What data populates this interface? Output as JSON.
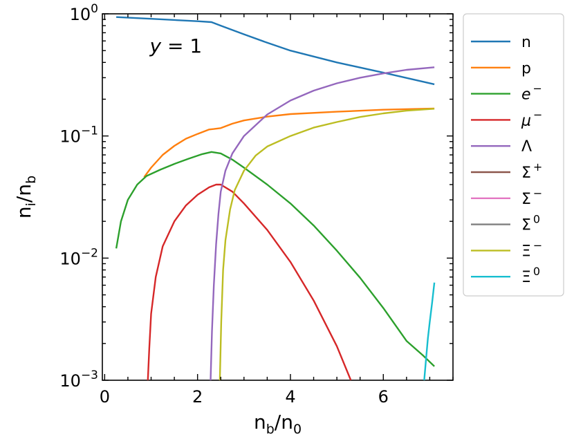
{
  "chart_data": {
    "type": "line",
    "title": "",
    "xlabel": {
      "base": "n",
      "sub": "b",
      "sep": "/",
      "base2": "n",
      "sub2": "0"
    },
    "ylabel": {
      "base": "n",
      "sub": "i",
      "sep": "/",
      "base2": "n",
      "sub2": "b"
    },
    "xlim": [
      -0.05,
      7.5
    ],
    "ylim": [
      0.001,
      1.0
    ],
    "yscale": "log",
    "grid": false,
    "legend_position": "outside-right",
    "x_ticks": [
      {
        "value": 0,
        "label": "0"
      },
      {
        "value": 2,
        "label": "2"
      },
      {
        "value": 4,
        "label": "4"
      },
      {
        "value": 6,
        "label": "6"
      }
    ],
    "y_ticks": [
      {
        "value": 1.0,
        "base": "10",
        "exp": "0"
      },
      {
        "value": 0.1,
        "base": "10",
        "exp": "−1"
      },
      {
        "value": 0.01,
        "base": "10",
        "exp": "−2"
      },
      {
        "value": 0.001,
        "base": "10",
        "exp": "−3"
      }
    ],
    "annotation": {
      "text_italic": "y",
      "text_rest": " = 1",
      "x": 1.0,
      "y": 0.55
    },
    "series": [
      {
        "name": "n",
        "label_main": "n",
        "label_sup": "",
        "italic": false,
        "color": "#1f77b4",
        "x": [
          0.25,
          1.0,
          2.0,
          2.3,
          2.5,
          3.0,
          3.5,
          4.0,
          5.0,
          6.0,
          7.1
        ],
        "y": [
          0.94,
          0.91,
          0.87,
          0.855,
          0.8,
          0.68,
          0.58,
          0.5,
          0.4,
          0.33,
          0.265
        ]
      },
      {
        "name": "p",
        "label_main": "p",
        "label_sup": "",
        "italic": false,
        "color": "#ff7f0e",
        "x": [
          0.85,
          1.0,
          1.25,
          1.5,
          1.75,
          2.0,
          2.25,
          2.35,
          2.5,
          2.75,
          3.0,
          3.5,
          4.0,
          5.0,
          6.0,
          7.1
        ],
        "y": [
          0.046,
          0.055,
          0.07,
          0.083,
          0.095,
          0.104,
          0.113,
          0.114,
          0.116,
          0.126,
          0.134,
          0.144,
          0.151,
          0.158,
          0.164,
          0.168
        ]
      },
      {
        "name": "e−",
        "label_main": "e",
        "label_sup": "−",
        "italic": true,
        "color": "#2ca02c",
        "x": [
          0.25,
          0.35,
          0.5,
          0.7,
          0.9,
          1.2,
          1.5,
          1.8,
          2.1,
          2.3,
          2.5,
          2.75,
          3.0,
          3.5,
          4.0,
          4.5,
          5.0,
          5.5,
          6.0,
          6.5,
          6.85,
          7.1
        ],
        "y": [
          0.012,
          0.02,
          0.03,
          0.04,
          0.047,
          0.053,
          0.059,
          0.065,
          0.071,
          0.074,
          0.072,
          0.064,
          0.055,
          0.04,
          0.028,
          0.0185,
          0.0115,
          0.0069,
          0.0039,
          0.0021,
          0.0016,
          0.0013
        ]
      },
      {
        "name": "μ−",
        "label_main": "μ",
        "label_sup": "−",
        "italic": true,
        "color": "#d62728",
        "x": [
          0.93,
          0.96,
          1.0,
          1.1,
          1.25,
          1.5,
          1.75,
          2.0,
          2.25,
          2.4,
          2.5,
          2.75,
          3.0,
          3.5,
          4.0,
          4.5,
          5.0,
          5.3
        ],
        "y": [
          0.001,
          0.0018,
          0.0035,
          0.007,
          0.0125,
          0.02,
          0.027,
          0.033,
          0.038,
          0.04,
          0.04,
          0.035,
          0.028,
          0.017,
          0.0093,
          0.0045,
          0.0019,
          0.001
        ]
      },
      {
        "name": "Λ",
        "label_main": "Λ",
        "label_sup": "",
        "italic": false,
        "color": "#9467bd",
        "x": [
          2.28,
          2.31,
          2.35,
          2.4,
          2.45,
          2.5,
          2.6,
          2.75,
          3.0,
          3.5,
          4.0,
          4.5,
          5.0,
          5.5,
          6.0,
          6.5,
          7.1
        ],
        "y": [
          0.001,
          0.0025,
          0.006,
          0.013,
          0.023,
          0.035,
          0.052,
          0.072,
          0.1,
          0.15,
          0.195,
          0.235,
          0.27,
          0.3,
          0.325,
          0.348,
          0.365
        ]
      },
      {
        "name": "Σ+",
        "label_main": "Σ",
        "label_sup": "+",
        "italic": false,
        "color": "#8c564b",
        "x": [],
        "y": []
      },
      {
        "name": "Σ−",
        "label_main": "Σ",
        "label_sup": "−",
        "italic": false,
        "color": "#e377c2",
        "x": [],
        "y": []
      },
      {
        "name": "Σ0",
        "label_main": "Σ",
        "label_sup": "0",
        "italic": false,
        "color": "#7f7f7f",
        "x": [],
        "y": []
      },
      {
        "name": "Ξ−",
        "label_main": "Ξ",
        "label_sup": "−",
        "italic": false,
        "color": "#bcbd22",
        "x": [
          2.48,
          2.51,
          2.55,
          2.6,
          2.7,
          2.8,
          3.0,
          3.25,
          3.5,
          4.0,
          4.5,
          5.0,
          5.5,
          6.0,
          6.5,
          7.1
        ],
        "y": [
          0.001,
          0.003,
          0.008,
          0.014,
          0.025,
          0.036,
          0.052,
          0.069,
          0.082,
          0.1,
          0.117,
          0.13,
          0.143,
          0.153,
          0.161,
          0.167
        ]
      },
      {
        "name": "Ξ0",
        "label_main": "Ξ",
        "label_sup": "0",
        "italic": false,
        "color": "#17becf",
        "x": [
          6.88,
          6.92,
          6.96,
          7.0,
          7.05,
          7.1
        ],
        "y": [
          0.001,
          0.0015,
          0.0022,
          0.003,
          0.0043,
          0.0063
        ]
      }
    ]
  }
}
